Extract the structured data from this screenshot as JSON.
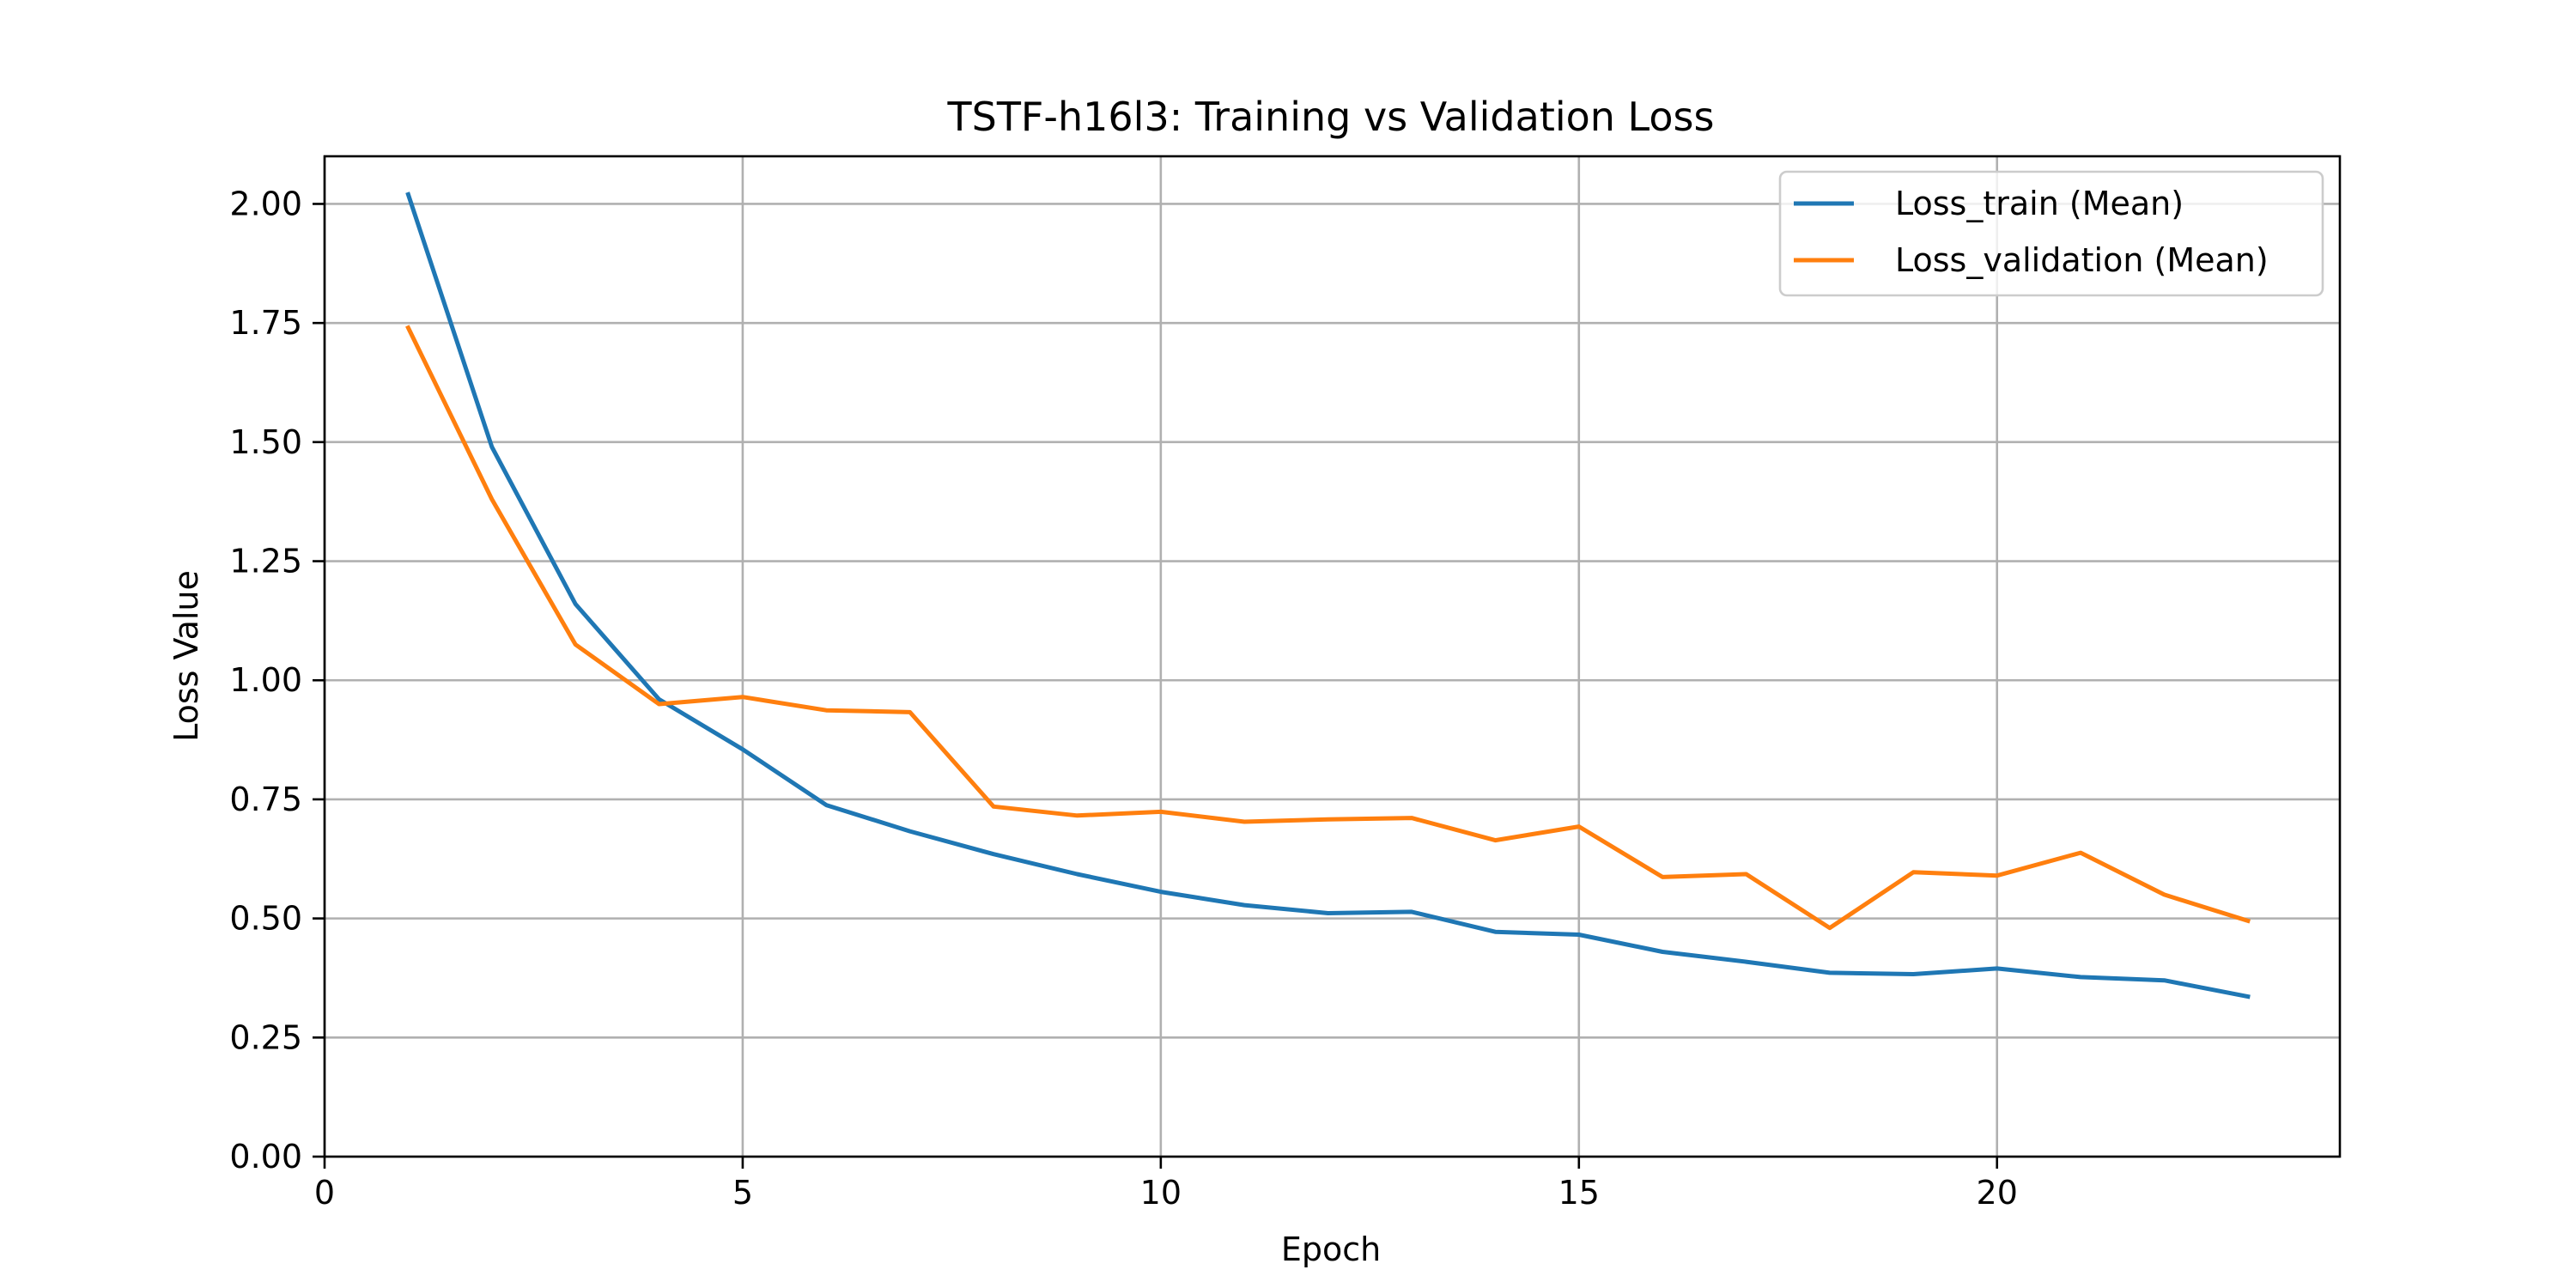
{
  "chart_data": {
    "type": "line",
    "title": "TSTF-h16l3: Training vs Validation Loss",
    "xlabel": "Epoch",
    "ylabel": "Loss Value",
    "xlim": [
      0,
      24.1
    ],
    "ylim": [
      0,
      2.1
    ],
    "xticks": [
      0,
      5,
      10,
      15,
      20
    ],
    "xtick_labels": [
      "0",
      "5",
      "10",
      "15",
      "20"
    ],
    "yticks": [
      0,
      0.25,
      0.5,
      0.75,
      1.0,
      1.25,
      1.5,
      1.75,
      2.0
    ],
    "ytick_labels": [
      "0.00",
      "0.25",
      "0.50",
      "0.75",
      "1.00",
      "1.25",
      "1.50",
      "1.75",
      "2.00"
    ],
    "grid": true,
    "legend_position": "top-right",
    "x": [
      1,
      2,
      3,
      4,
      5,
      6,
      7,
      8,
      9,
      10,
      11,
      12,
      13,
      14,
      15,
      16,
      17,
      18,
      19,
      20,
      21,
      22,
      23
    ],
    "series": [
      {
        "name": "Loss_train (Mean)",
        "color": "#1f77b4",
        "values": [
          2.02,
          1.49,
          1.16,
          0.96,
          0.855,
          0.738,
          0.683,
          0.635,
          0.593,
          0.556,
          0.528,
          0.511,
          0.514,
          0.472,
          0.466,
          0.43,
          0.409,
          0.386,
          0.383,
          0.395,
          0.377,
          0.37,
          0.336
        ]
      },
      {
        "name": "Loss_validation (Mean)",
        "color": "#ff7f0e",
        "values": [
          1.74,
          1.38,
          1.075,
          0.95,
          0.965,
          0.937,
          0.933,
          0.735,
          0.716,
          0.724,
          0.703,
          0.708,
          0.711,
          0.664,
          0.693,
          0.587,
          0.593,
          0.48,
          0.597,
          0.59,
          0.638,
          0.55,
          0.495
        ]
      }
    ]
  }
}
